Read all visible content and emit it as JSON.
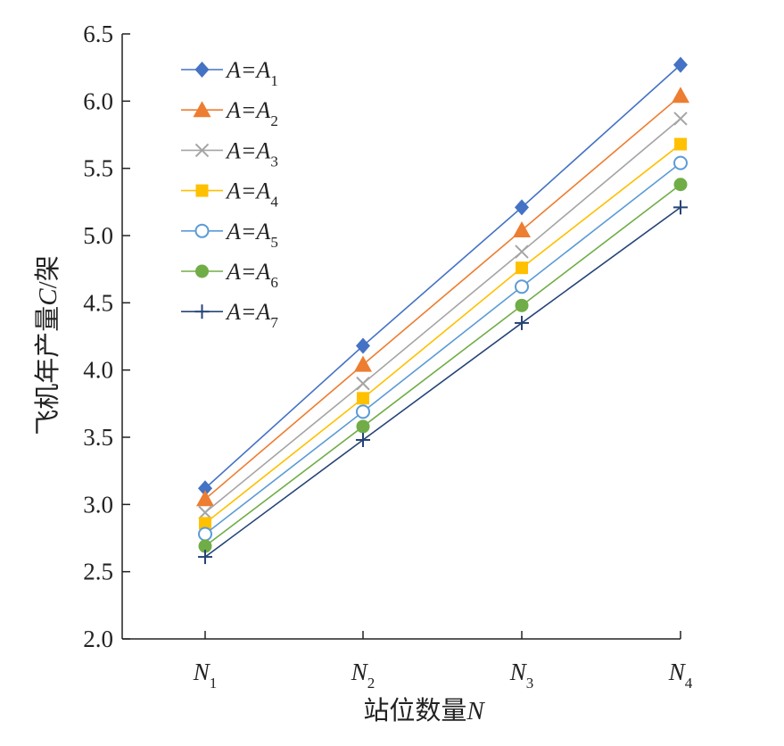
{
  "chart_data": {
    "type": "line",
    "xlabel_main": "站位数量",
    "xlabel_var": "N",
    "ylabel_main": "飞机年产量",
    "ylabel_var": "C",
    "ylabel_unit": "/架",
    "categories": [
      {
        "base": "N",
        "sub": "1"
      },
      {
        "base": "N",
        "sub": "2"
      },
      {
        "base": "N",
        "sub": "3"
      },
      {
        "base": "N",
        "sub": "4"
      }
    ],
    "ylim": [
      2.0,
      6.5
    ],
    "yticks": [
      "2.0",
      "2.5",
      "3.0",
      "3.5",
      "4.0",
      "4.5",
      "5.0",
      "5.5",
      "6.0",
      "6.5"
    ],
    "grid": false,
    "legend_position": "top-left",
    "series": [
      {
        "name": "A=A",
        "sub": "1",
        "marker": "diamond",
        "color": "#4472C4",
        "values": [
          3.12,
          4.18,
          5.21,
          6.27
        ]
      },
      {
        "name": "A=A",
        "sub": "2",
        "marker": "triangle",
        "color": "#ED7D31",
        "values": [
          3.04,
          4.04,
          5.04,
          6.04
        ]
      },
      {
        "name": "A=A",
        "sub": "3",
        "marker": "x",
        "color": "#A5A5A5",
        "values": [
          2.94,
          3.9,
          4.88,
          5.87
        ]
      },
      {
        "name": "A=A",
        "sub": "4",
        "marker": "square",
        "color": "#FFC000",
        "values": [
          2.86,
          3.79,
          4.76,
          5.68
        ]
      },
      {
        "name": "A=A",
        "sub": "5",
        "marker": "circle-open",
        "color": "#5B9BD5",
        "values": [
          2.78,
          3.69,
          4.62,
          5.54
        ]
      },
      {
        "name": "A=A",
        "sub": "6",
        "marker": "circle",
        "color": "#70AD47",
        "values": [
          2.69,
          3.58,
          4.48,
          5.38
        ]
      },
      {
        "name": "A=A",
        "sub": "7",
        "marker": "plus",
        "color": "#264478",
        "values": [
          2.61,
          3.48,
          4.35,
          5.21
        ]
      }
    ]
  }
}
